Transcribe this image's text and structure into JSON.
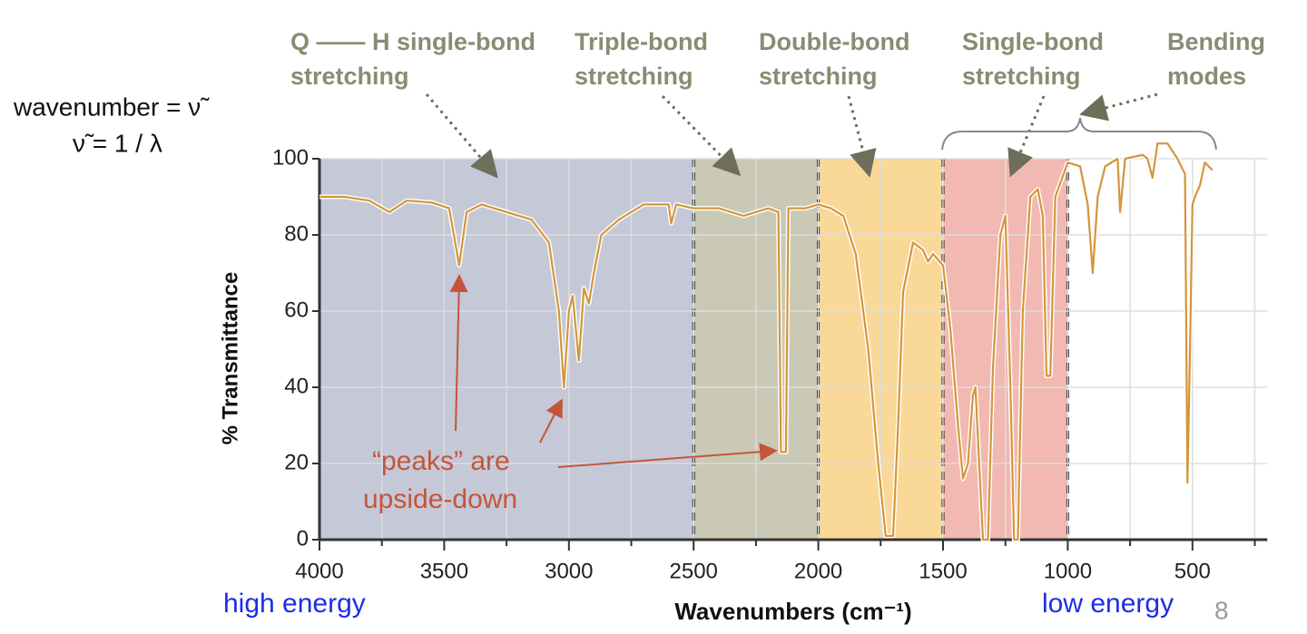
{
  "chart_data": {
    "type": "line",
    "x_label": "Wavenumbers (cm⁻¹)",
    "y_label": "% Transmittance",
    "xlim": [
      4000,
      200
    ],
    "ylim": [
      0,
      100
    ],
    "xticks": [
      4000,
      3500,
      3000,
      2500,
      2000,
      1500,
      1000,
      500
    ],
    "xticks_minor": [
      3750,
      3250,
      2750,
      2250,
      1750,
      1250,
      750,
      250
    ],
    "yticks": [
      0,
      20,
      40,
      60,
      80,
      100
    ],
    "grid": true,
    "regions": [
      {
        "from": 4000,
        "to": 2500,
        "color": "#c5c8d6",
        "label": [
          "Q —— H single-bond",
          "stretching"
        ]
      },
      {
        "from": 2500,
        "to": 2000,
        "color": "#c9c9b5",
        "label": [
          "Triple-bond",
          "stretching"
        ]
      },
      {
        "from": 2000,
        "to": 1500,
        "color": "#f9d898",
        "label": [
          "Double-bond",
          "stretching"
        ]
      },
      {
        "from": 1500,
        "to": 1000,
        "color": "#f1b9b2",
        "label": [
          "Single-bond",
          "stretching"
        ]
      }
    ],
    "bending_label": [
      "Bending",
      "modes"
    ],
    "formula": [
      "wavenumber = ν̃",
      "ν̃ = 1 / λ"
    ],
    "peaks_note": [
      "“peaks” are",
      "upside-down"
    ],
    "energy_labels": [
      "high energy",
      "low energy"
    ],
    "page_number": "8",
    "series": [
      {
        "name": "spectrum",
        "color": "#d4953a",
        "x": [
          4000,
          3900,
          3800,
          3720,
          3650,
          3550,
          3480,
          3440,
          3410,
          3350,
          3250,
          3150,
          3080,
          3040,
          3020,
          3000,
          2985,
          2960,
          2940,
          2920,
          2900,
          2870,
          2800,
          2750,
          2700,
          2600,
          2590,
          2570,
          2500,
          2400,
          2300,
          2200,
          2160,
          2150,
          2130,
          2120,
          2050,
          2000,
          1950,
          1900,
          1850,
          1800,
          1760,
          1730,
          1700,
          1680,
          1660,
          1620,
          1580,
          1560,
          1540,
          1500,
          1470,
          1440,
          1420,
          1400,
          1380,
          1370,
          1355,
          1340,
          1320,
          1300,
          1270,
          1250,
          1230,
          1215,
          1200,
          1180,
          1150,
          1120,
          1100,
          1085,
          1070,
          1050,
          1000,
          950,
          920,
          900,
          880,
          850,
          800,
          790,
          770,
          700,
          680,
          660,
          640,
          600,
          560,
          530,
          520,
          510,
          500,
          490,
          470,
          450,
          420
        ],
        "values": [
          90,
          90,
          89,
          86,
          89,
          88.5,
          87,
          72,
          86,
          88,
          86,
          84,
          78,
          60,
          40,
          60,
          64,
          47,
          66,
          62,
          70,
          80,
          84,
          86,
          88,
          88,
          83,
          88,
          87,
          87,
          85,
          87,
          86,
          23,
          23,
          87,
          87,
          88,
          87,
          85,
          75,
          50,
          20,
          1,
          1,
          30,
          65,
          78,
          76,
          73,
          75,
          72,
          55,
          30,
          16,
          20,
          38,
          40,
          20,
          0,
          0,
          45,
          80,
          85,
          40,
          0,
          0,
          60,
          90,
          92,
          85,
          43,
          43,
          90,
          99,
          98,
          88,
          70,
          90,
          98,
          100,
          86,
          100,
          101,
          100,
          95,
          104,
          104,
          100,
          96,
          15,
          50,
          88,
          90,
          93,
          99,
          97
        ]
      }
    ]
  }
}
